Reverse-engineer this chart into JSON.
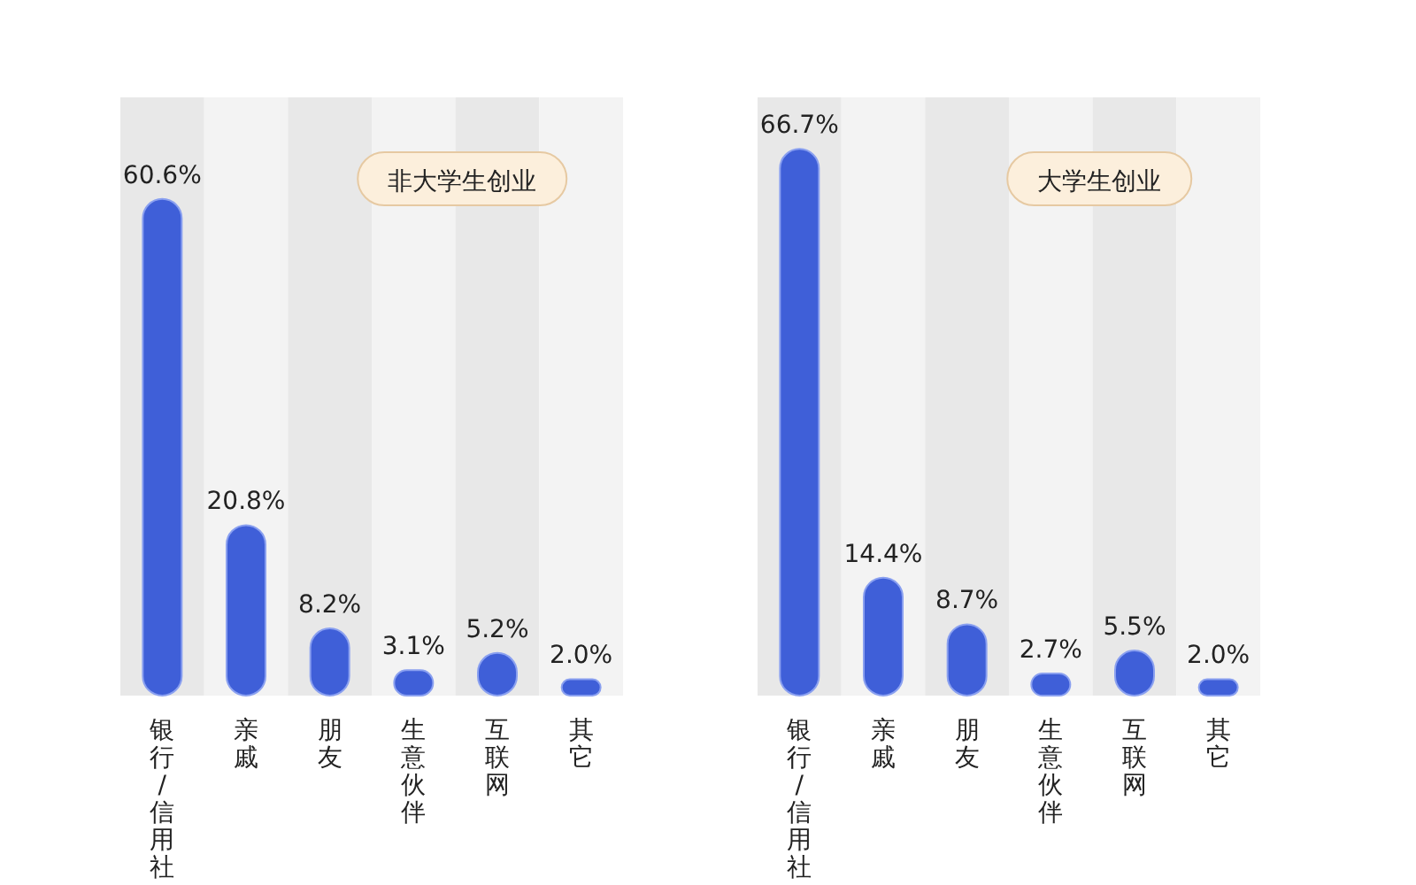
{
  "chart_data": [
    {
      "type": "bar",
      "title": "非大学生创业",
      "categories": [
        "银行/信用社",
        "亲戚",
        "朋友",
        "生意伙伴",
        "互联网",
        "其它"
      ],
      "values": [
        60.6,
        20.8,
        8.2,
        3.1,
        5.2,
        2.0
      ],
      "value_labels": [
        "60.6%",
        "20.8%",
        "8.2%",
        "3.1%",
        "5.2%",
        "2.0%"
      ],
      "color": "#3f5fd8",
      "ylim": [
        0,
        73
      ],
      "tick_labels": "x"
    },
    {
      "type": "bar",
      "title": "大学生创业",
      "categories": [
        "银行/信用社",
        "亲戚",
        "朋友",
        "生意伙伴",
        "互联网",
        "其它"
      ],
      "values": [
        66.7,
        14.4,
        8.7,
        2.7,
        5.5,
        2.0
      ],
      "value_labels": [
        "66.7%",
        "14.4%",
        "8.7%",
        "2.7%",
        "5.5%",
        "2.0%"
      ],
      "color": "#3f5fd8",
      "ylim": [
        0,
        73
      ],
      "tick_labels": "x"
    }
  ]
}
